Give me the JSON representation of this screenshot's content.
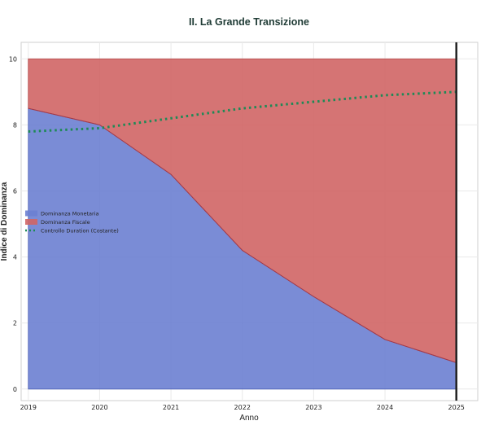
{
  "chart_data": {
    "type": "area",
    "title": "II. La Grande Transizione",
    "xlabel": "Anno",
    "ylabel": "Indice di Dominanza",
    "x": [
      2019,
      2020,
      2021,
      2022,
      2023,
      2024,
      2025
    ],
    "xticks": [
      "2019",
      "2020",
      "2021",
      "2022",
      "2023",
      "2024",
      "2025"
    ],
    "yticks": [
      "0",
      "2",
      "4",
      "6",
      "8",
      "10"
    ],
    "xlim": [
      2018.9,
      2025.3
    ],
    "ylim": [
      -0.35,
      10.5
    ],
    "grid": true,
    "legend_position": "center-left",
    "series": [
      {
        "name": "Dominanza Monetaria",
        "kind": "area",
        "color": "#6b80d2",
        "values": [
          8.5,
          8.0,
          6.5,
          4.2,
          2.8,
          1.5,
          0.8
        ]
      },
      {
        "name": "Dominanza Fiscale",
        "kind": "area",
        "color": "#d06565",
        "values": [
          1.5,
          2.0,
          3.5,
          5.8,
          7.2,
          8.5,
          9.2
        ]
      },
      {
        "name": "Controllo Duration (Costante)",
        "kind": "line",
        "style": "dotted",
        "color": "#1e8a56",
        "values": [
          7.8,
          7.9,
          8.2,
          8.5,
          8.7,
          8.9,
          9.0
        ]
      }
    ],
    "annotations": [
      {
        "type": "vertical-line",
        "x": 2025,
        "color": "#222222"
      }
    ]
  }
}
